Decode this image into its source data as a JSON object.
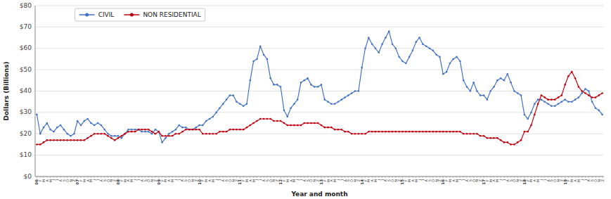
{
  "chart_data": {
    "type": "line",
    "x_label": "Year and month",
    "y_label": "Dollars (Billions)",
    "categories": [
      "06",
      "F",
      "M",
      "A",
      "M",
      "J",
      "J",
      "A",
      "S",
      "O",
      "N",
      "Z",
      "07",
      "F",
      "M",
      "A",
      "M",
      "J",
      "J",
      "A",
      "S",
      "O",
      "N",
      "Z",
      "08",
      "F",
      "M",
      "A",
      "M",
      "J",
      "J",
      "A",
      "S",
      "O",
      "N",
      "Z",
      "09",
      "F",
      "M",
      "A",
      "M",
      "J",
      "J",
      "A",
      "S",
      "O",
      "N",
      "Z",
      "10",
      "F",
      "M",
      "A",
      "M",
      "J",
      "J",
      "A",
      "S",
      "O",
      "N",
      "Z",
      "11",
      "F",
      "M",
      "A",
      "M",
      "J",
      "J",
      "A",
      "S",
      "O",
      "N",
      "Z",
      "12",
      "F",
      "M",
      "A",
      "M",
      "J",
      "J",
      "A",
      "S",
      "O",
      "N",
      "Z",
      "13",
      "F",
      "M",
      "A",
      "M",
      "J",
      "J",
      "A",
      "S",
      "O",
      "N",
      "Z",
      "14",
      "F",
      "M",
      "A",
      "M",
      "J",
      "J",
      "A",
      "S",
      "O",
      "N",
      "Z",
      "15",
      "F",
      "M",
      "A",
      "M",
      "J",
      "J",
      "A",
      "S",
      "O",
      "N",
      "Z",
      "16",
      "F",
      "M",
      "A",
      "M",
      "J",
      "J",
      "A",
      "S",
      "O",
      "N",
      "Z",
      "17",
      "F",
      "M",
      "A",
      "M",
      "J",
      "J",
      "A",
      "S",
      "O",
      "N",
      "Z",
      "18",
      "F",
      "M",
      "A",
      "M",
      "J",
      "J",
      "A",
      "S",
      "O",
      "N",
      "Z",
      "19",
      "F",
      "M",
      "A",
      "M",
      "J",
      "J",
      "A",
      "S",
      "O",
      "N",
      "Z"
    ],
    "series": [
      {
        "name": "CIVIL",
        "color": "#4472C4",
        "marker": "circle",
        "values": [
          29,
          20,
          23,
          25,
          22,
          21,
          23,
          24,
          22,
          20,
          19,
          20,
          26,
          24,
          26,
          27,
          25,
          24,
          25,
          24,
          22,
          20,
          19,
          19,
          19,
          18,
          20,
          22,
          22,
          22,
          22,
          21,
          21,
          21,
          20,
          22,
          21,
          16,
          18,
          20,
          21,
          22,
          24,
          23,
          23,
          22,
          22,
          23,
          24,
          24,
          26,
          27,
          28,
          30,
          32,
          34,
          36,
          38,
          38,
          35,
          34,
          33,
          34,
          45,
          54,
          55,
          61,
          57,
          55,
          46,
          43,
          43,
          42,
          31,
          28,
          32,
          34,
          36,
          44,
          45,
          46,
          43,
          42,
          42,
          43,
          36,
          35,
          34,
          34,
          35,
          36,
          37,
          38,
          39,
          40,
          40,
          51,
          60,
          65,
          62,
          60,
          58,
          62,
          65,
          68,
          62,
          60,
          56,
          54,
          53,
          56,
          59,
          63,
          65,
          62,
          61,
          60,
          59,
          57,
          56,
          48,
          49,
          53,
          55,
          56,
          54,
          45,
          42,
          40,
          44,
          40,
          38,
          38,
          36,
          40,
          42,
          45,
          46,
          45,
          48,
          44,
          40,
          39,
          38,
          29,
          27,
          30,
          34,
          36,
          36,
          35,
          34,
          33,
          33,
          34,
          35,
          36,
          35,
          35,
          36,
          37,
          39,
          41,
          40,
          35,
          32,
          31,
          29
        ]
      },
      {
        "name": "NON RESIDENTIAL",
        "color": "#C0000C",
        "marker": "circle",
        "values": [
          15,
          15,
          16,
          17,
          17,
          17,
          17,
          17,
          17,
          17,
          17,
          17,
          17,
          17,
          17,
          18,
          19,
          20,
          20,
          20,
          20,
          19,
          18,
          17,
          18,
          19,
          20,
          21,
          21,
          21,
          22,
          22,
          22,
          22,
          21,
          20,
          21,
          19,
          19,
          19,
          19,
          20,
          20,
          21,
          22,
          22,
          22,
          22,
          22,
          20,
          20,
          20,
          20,
          20,
          21,
          21,
          21,
          22,
          22,
          22,
          22,
          22,
          23,
          24,
          25,
          26,
          27,
          27,
          27,
          27,
          26,
          26,
          26,
          25,
          24,
          24,
          24,
          24,
          24,
          25,
          25,
          25,
          25,
          25,
          24,
          23,
          23,
          23,
          22,
          22,
          22,
          21,
          21,
          20,
          20,
          20,
          20,
          20,
          21,
          21,
          21,
          21,
          21,
          21,
          21,
          21,
          21,
          21,
          21,
          21,
          21,
          21,
          21,
          21,
          21,
          21,
          21,
          21,
          21,
          21,
          21,
          21,
          21,
          21,
          21,
          21,
          20,
          20,
          20,
          20,
          20,
          19,
          19,
          18,
          18,
          18,
          18,
          17,
          16,
          16,
          15,
          15,
          16,
          17,
          21,
          21,
          24,
          29,
          34,
          38,
          37,
          36,
          36,
          36,
          37,
          38,
          43,
          47,
          49,
          46,
          42,
          40,
          39,
          38,
          37,
          37,
          38,
          39
        ]
      }
    ],
    "ylim": [
      0,
      80
    ],
    "yticks": [
      {
        "value": 0,
        "label": "$0"
      },
      {
        "value": 10,
        "label": "$10"
      },
      {
        "value": 20,
        "label": "$20"
      },
      {
        "value": 30,
        "label": "$30"
      },
      {
        "value": 40,
        "label": "$40"
      },
      {
        "value": 50,
        "label": "$50"
      },
      {
        "value": 60,
        "label": "$60"
      },
      {
        "value": 70,
        "label": "$70"
      },
      {
        "value": 80,
        "label": "$80"
      }
    ],
    "grid": true,
    "legend": "upper left"
  }
}
